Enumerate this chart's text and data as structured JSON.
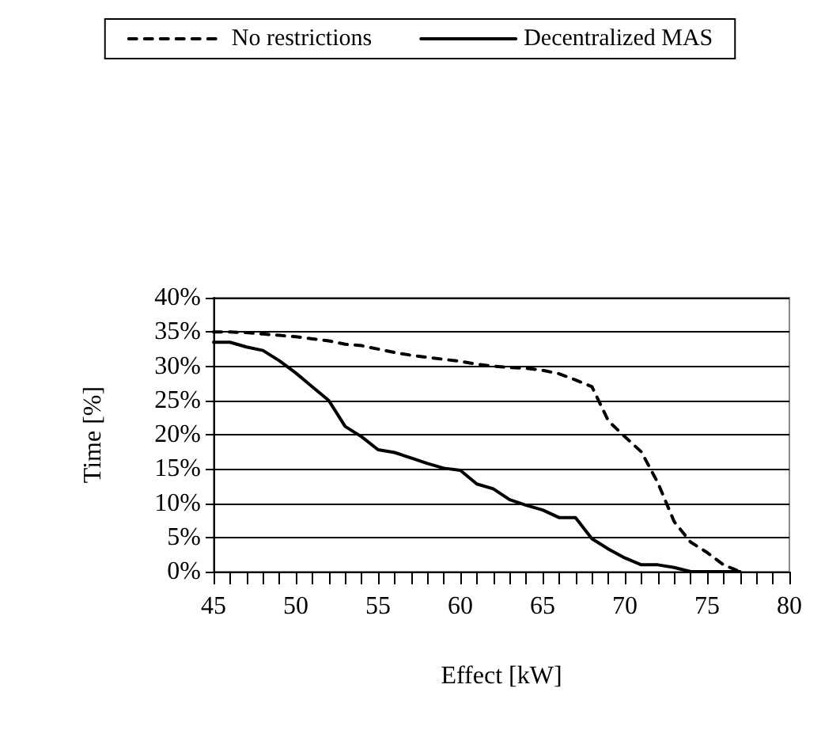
{
  "chart_data": {
    "type": "line",
    "xlabel": "Effect [kW]",
    "ylabel": "Time [%]",
    "x": [
      45,
      46,
      47,
      48,
      49,
      50,
      51,
      52,
      53,
      54,
      55,
      56,
      57,
      58,
      59,
      60,
      61,
      62,
      63,
      64,
      65,
      66,
      67,
      68,
      69,
      70,
      71,
      72,
      73,
      74,
      75,
      76,
      77
    ],
    "series": [
      {
        "name": "No restrictions",
        "color": "#000000",
        "line_style": "dashed",
        "values": [
          35,
          35,
          34.9,
          34.7,
          34.5,
          34.3,
          34,
          33.7,
          33.2,
          33,
          32.5,
          32,
          31.6,
          31.3,
          31,
          30.7,
          30.3,
          30,
          29.8,
          29.7,
          29.4,
          28.9,
          28,
          27,
          22,
          19.7,
          17.5,
          13,
          7.3,
          4.3,
          2.8,
          1,
          0
        ]
      },
      {
        "name": "Decentralized MAS",
        "color": "#000000",
        "line_style": "solid",
        "values": [
          33.5,
          33.5,
          32.8,
          32.3,
          30.8,
          29,
          27,
          25,
          21.2,
          19.7,
          17.8,
          17.4,
          16.6,
          15.8,
          15.1,
          14.8,
          12.8,
          12.1,
          10.5,
          9.7,
          9,
          7.9,
          7.9,
          4.8,
          3.3,
          2,
          1,
          1,
          0.6,
          0,
          0,
          0,
          0
        ]
      }
    ],
    "xlim": [
      45,
      80
    ],
    "xticks": [
      45,
      50,
      55,
      60,
      65,
      70,
      75,
      80
    ],
    "ylim": [
      0,
      40
    ],
    "yticks": [
      {
        "value": 0,
        "label": "0%"
      },
      {
        "value": 5,
        "label": "5%"
      },
      {
        "value": 10,
        "label": "10%"
      },
      {
        "value": 15,
        "label": "15%"
      },
      {
        "value": 20,
        "label": "20%"
      },
      {
        "value": 25,
        "label": "25%"
      },
      {
        "value": 30,
        "label": "30%"
      },
      {
        "value": 35,
        "label": "35%"
      },
      {
        "value": 40,
        "label": "40%"
      }
    ],
    "grid": "y",
    "legend": "top",
    "marker": "none"
  }
}
